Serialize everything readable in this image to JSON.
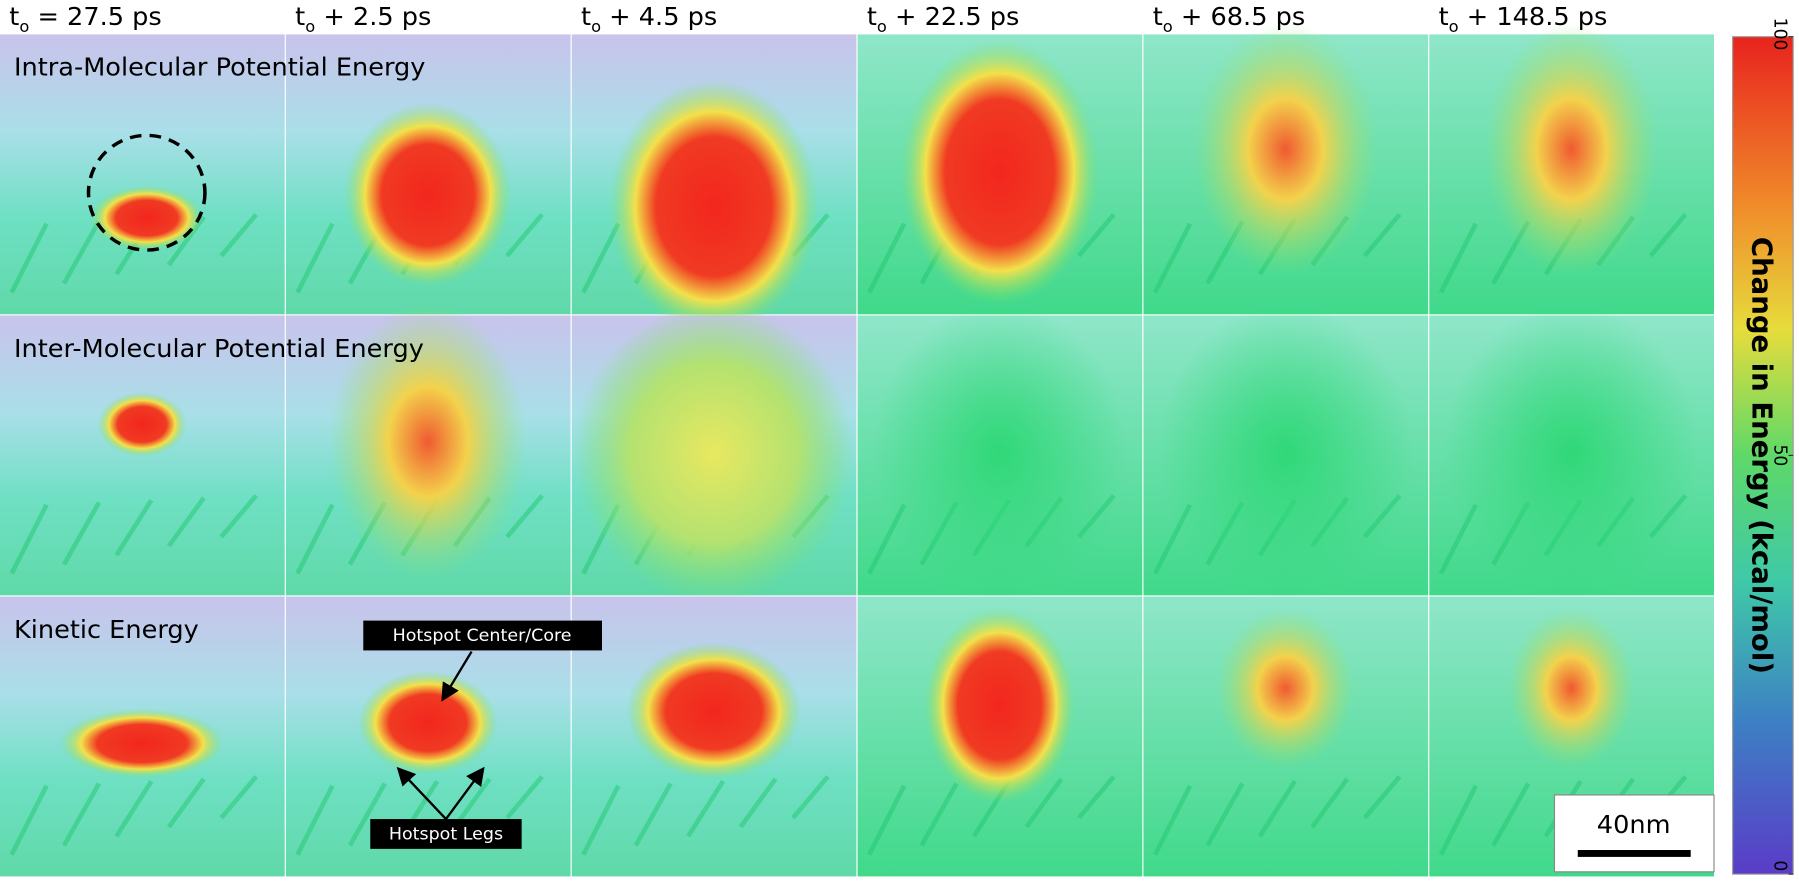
{
  "column_headers": [
    {
      "base": "t",
      "sub": "o",
      "offset": " = 27.5 ps"
    },
    {
      "base": "t",
      "sub": "o",
      "offset": " + 2.5 ps"
    },
    {
      "base": "t",
      "sub": "o",
      "offset": " + 4.5 ps"
    },
    {
      "base": "t",
      "sub": "o",
      "offset": " + 22.5 ps"
    },
    {
      "base": "t",
      "sub": "o",
      "offset": " + 68.5 ps"
    },
    {
      "base": "t",
      "sub": "o",
      "offset": " + 148.5 ps"
    }
  ],
  "row_labels": [
    "Intra-Molecular Potential Energy",
    "Inter-Molecular Potential Energy",
    "Kinetic Energy"
  ],
  "annotations": {
    "core": "Hotspot Center/Core",
    "legs": "Hotspot Legs"
  },
  "scale_bar": "40nm",
  "colorbar": {
    "title": "Change in Energy (kcal/mol)",
    "lim": [
      0,
      100
    ],
    "ticks": [
      0,
      50,
      100
    ]
  }
}
